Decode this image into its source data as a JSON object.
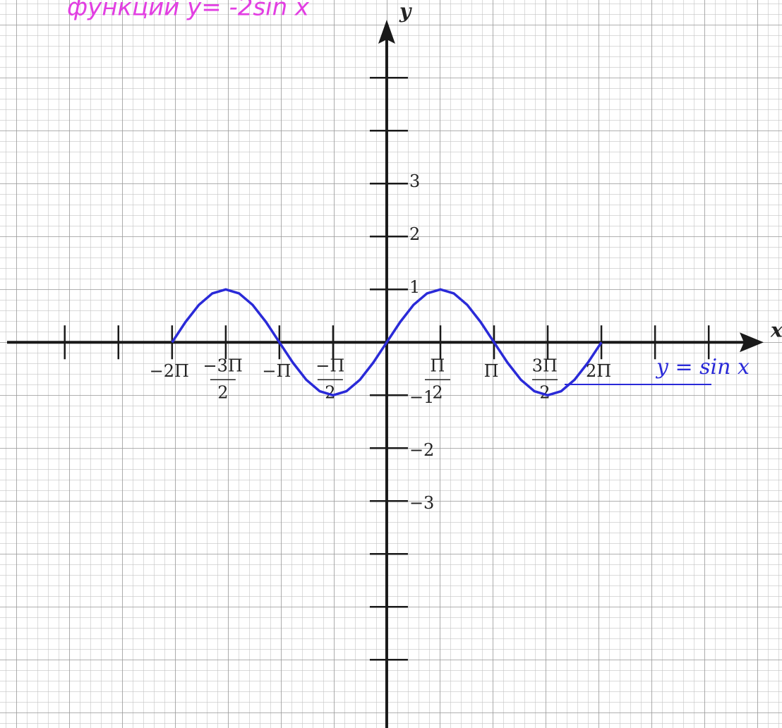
{
  "chart_data": {
    "type": "line",
    "title": "функций y= -2sin x",
    "x_label": "x",
    "y_label": "y",
    "annotation": "y = sin x",
    "xlim": [
      -11.32,
      11.57
    ],
    "ylim": [
      -7.29,
      6.47
    ],
    "xticks": [
      {
        "value": -9.425,
        "label": null
      },
      {
        "value": -7.854,
        "label": null
      },
      {
        "value": -6.283,
        "label": "−2Π"
      },
      {
        "value": -4.712,
        "label": "−3Π/2"
      },
      {
        "value": -3.142,
        "label": "−Π"
      },
      {
        "value": -1.571,
        "label": "−Π/2"
      },
      {
        "value": 1.571,
        "label": "Π/2"
      },
      {
        "value": 3.142,
        "label": "Π"
      },
      {
        "value": 4.712,
        "label": "3Π/2"
      },
      {
        "value": 6.283,
        "label": "2Π"
      },
      {
        "value": 7.854,
        "label": null
      },
      {
        "value": 9.425,
        "label": null
      }
    ],
    "yticks": [
      {
        "value": 5,
        "label": null
      },
      {
        "value": 4,
        "label": null
      },
      3,
      2,
      1,
      {
        "value": -1,
        "label": "−1"
      },
      {
        "value": -2,
        "label": "−2"
      },
      {
        "value": -3,
        "label": "−3"
      },
      {
        "value": -4,
        "label": null
      },
      {
        "value": -5,
        "label": null
      },
      {
        "value": -6,
        "label": null
      }
    ],
    "series": [
      {
        "name": "y = sin x",
        "color": "#2a2ad8",
        "x": [
          -6.283,
          -5.89,
          -5.498,
          -5.105,
          -4.712,
          -4.32,
          -3.927,
          -3.534,
          -3.142,
          -2.749,
          -2.356,
          -1.963,
          -1.571,
          -1.178,
          -0.785,
          -0.393,
          0,
          0.393,
          0.785,
          1.178,
          1.571,
          1.963,
          2.356,
          2.749,
          3.142,
          3.534,
          3.927,
          4.32,
          4.712,
          5.105,
          5.498,
          5.89,
          6.283
        ],
        "values": [
          0,
          0.383,
          0.707,
          0.924,
          1,
          0.924,
          0.707,
          0.383,
          0,
          -0.383,
          -0.707,
          -0.924,
          -1,
          -0.924,
          -0.707,
          -0.383,
          0,
          0.383,
          0.707,
          0.924,
          1,
          0.924,
          0.707,
          0.383,
          0,
          -0.383,
          -0.707,
          -0.924,
          -1,
          -0.924,
          -0.707,
          -0.383,
          0
        ]
      }
    ]
  }
}
